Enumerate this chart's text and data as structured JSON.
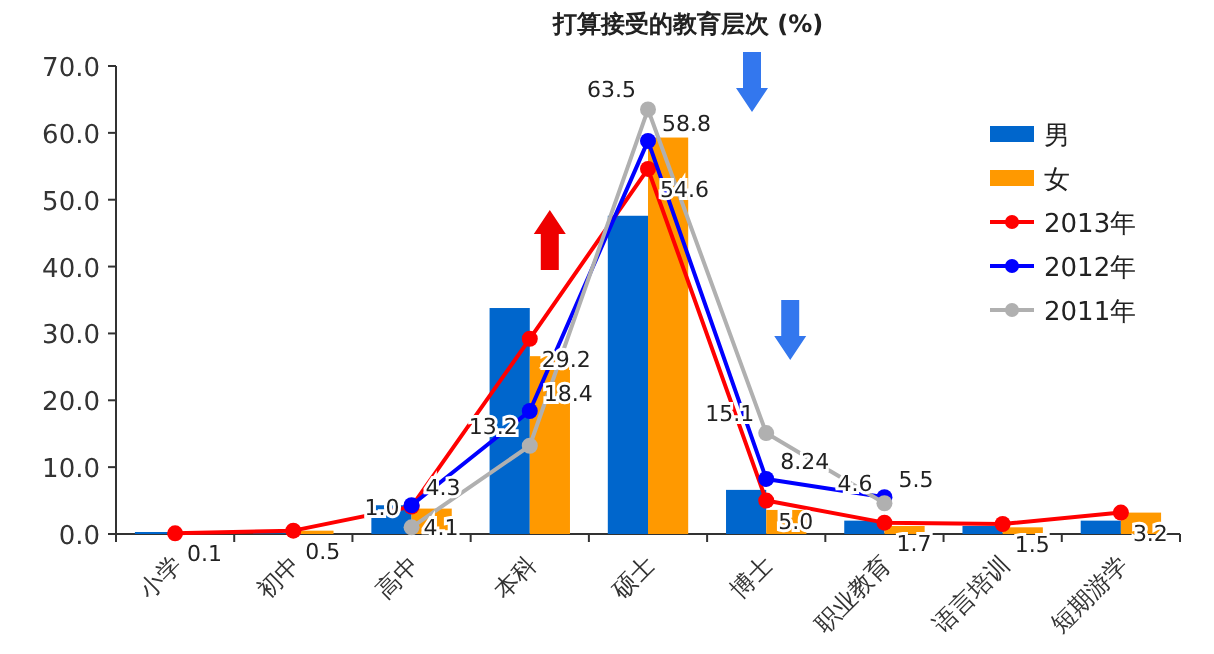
{
  "chart_data": {
    "type": "bar",
    "title": "打算接受的教育层次 (%)",
    "categories": [
      "小学",
      "初中",
      "高中",
      "本科",
      "硕士",
      "博士",
      "职业教育",
      "语言培训",
      "短期游学"
    ],
    "ylim": [
      0,
      70
    ],
    "yticks": [
      {
        "value": 0,
        "label": "0.0"
      },
      {
        "value": 10,
        "label": "10.0"
      },
      {
        "value": 20,
        "label": "20.0"
      },
      {
        "value": 30,
        "label": "30.0"
      },
      {
        "value": 40,
        "label": "40.0"
      },
      {
        "value": 50,
        "label": "50.0"
      },
      {
        "value": 60,
        "label": "60.0"
      },
      {
        "value": 70,
        "label": "70.0"
      }
    ],
    "grid": false,
    "legend": "top right",
    "marker": "circle",
    "series": [
      {
        "name": "男",
        "color": "#0066cc",
        "values": [
          0.3,
          0.1,
          4.3,
          33.8,
          47.6,
          6.6,
          2.0,
          1.2,
          2.0
        ]
      },
      {
        "name": "女",
        "color": "#ff9900",
        "values": [
          0.0,
          0.5,
          3.8,
          26.6,
          59.3,
          3.6,
          1.2,
          1.0,
          3.2
        ]
      },
      {
        "name": "2013年",
        "type": "line",
        "color": "#ff0000",
        "values": [
          0.1,
          0.5,
          4.1,
          29.2,
          54.6,
          5.0,
          1.7,
          1.5,
          3.2
        ],
        "value_labels": [
          "0.1",
          "0.5",
          "4.1",
          "29.2",
          "54.6",
          "5.0",
          "1.7",
          "1.5",
          "3.2"
        ]
      },
      {
        "name": "2012年",
        "type": "line",
        "color": "#0000ff",
        "values": [
          null,
          null,
          4.3,
          18.4,
          58.8,
          8.24,
          5.5,
          null,
          null
        ],
        "value_labels": [
          null,
          null,
          "4.3",
          "18.4",
          "58.8",
          "8.24",
          "5.5",
          null,
          null
        ]
      },
      {
        "name": "2011年",
        "type": "line",
        "color": "#b0b0b0",
        "values": [
          null,
          null,
          1.0,
          13.2,
          63.5,
          15.1,
          4.6,
          null,
          null
        ],
        "value_labels": [
          null,
          null,
          "1.0",
          "13.2",
          "63.5",
          "15.1",
          "4.6",
          null,
          null
        ]
      }
    ]
  }
}
